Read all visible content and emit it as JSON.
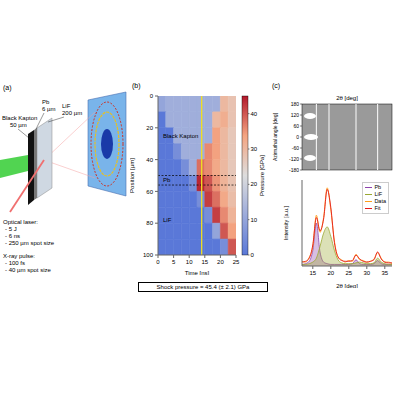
{
  "figure": {
    "panel_a": {
      "label": "(a)",
      "layers": [
        {
          "name": "Pb",
          "thickness": "6 µm"
        },
        {
          "name": "LiF",
          "thickness": "200 µm"
        },
        {
          "name": "Black Kapton",
          "thickness": "50 µm"
        }
      ],
      "optical_laser": {
        "title": "Optical laser:",
        "specs": [
          "- 5 J",
          "- 6 ns",
          "- 250 µm spot size"
        ]
      },
      "xray_pulse": {
        "title": "X-ray pulse:",
        "specs": [
          "- 100 fs",
          "- 40 µm spot size"
        ]
      }
    },
    "shock_pressure": "Shock pressure = 45.4 (± 2.1) GPa"
  },
  "chart_data": [
    {
      "type": "heatmap",
      "panel_label": "(b)",
      "xlabel": "Time [ns]",
      "ylabel": "Position [µm]",
      "xlim": [
        0,
        25
      ],
      "xticks": [
        0,
        5,
        10,
        15,
        20,
        25
      ],
      "ylim": [
        0,
        100
      ],
      "yticks": [
        0,
        20,
        40,
        60,
        80,
        100
      ],
      "x_edges": [
        0,
        2.5,
        5,
        7.5,
        10,
        12.5,
        15,
        17.5,
        20,
        22.5,
        25
      ],
      "y_edges": [
        0,
        10,
        20,
        30,
        40,
        50,
        60,
        70,
        80,
        90,
        100
      ],
      "cells": [
        [
          10,
          12,
          12,
          12,
          12,
          12,
          12,
          12,
          30,
          28
        ],
        [
          0,
          12,
          12,
          12,
          12,
          12,
          12,
          30,
          32,
          28
        ],
        [
          0,
          0,
          12,
          12,
          12,
          12,
          12,
          34,
          30,
          27
        ],
        [
          0,
          0,
          5,
          12,
          12,
          12,
          36,
          34,
          30,
          27
        ],
        [
          0,
          0,
          0,
          5,
          12,
          38,
          36,
          33,
          30,
          27
        ],
        [
          0,
          0,
          0,
          0,
          5,
          44,
          40,
          35,
          31,
          28
        ],
        [
          0,
          0,
          0,
          0,
          0,
          5,
          42,
          38,
          33,
          29
        ],
        [
          0,
          0,
          0,
          0,
          0,
          0,
          5,
          42,
          36,
          31
        ],
        [
          0,
          0,
          0,
          0,
          0,
          0,
          0,
          10,
          40,
          34
        ],
        [
          0,
          0,
          0,
          0,
          0,
          0,
          0,
          0,
          5,
          40
        ]
      ],
      "colorbar": {
        "label": "Pressure [GPa]",
        "range": [
          0,
          45
        ],
        "ticks": [
          0,
          10,
          20,
          30,
          40
        ]
      },
      "layers": [
        {
          "name": "Black Kapton",
          "from": 0,
          "to": 50
        },
        {
          "name": "Pb",
          "from": 50,
          "to": 56
        },
        {
          "name": "LiF",
          "from": 56,
          "to": 100
        }
      ],
      "probe_time": 14
    },
    {
      "type": "image",
      "panel_label": "(c)",
      "xlabel": "2θ [deg]",
      "ylabel": "Azimuthal angle [deg]",
      "xlim": [
        12,
        37
      ],
      "ylim": [
        -180,
        180
      ],
      "yticks": [
        -180,
        -120,
        -60,
        0,
        60,
        120,
        180
      ],
      "tick_labels": "y",
      "ring_positions": [
        16,
        19.5,
        27,
        33
      ]
    },
    {
      "type": "line",
      "xlabel": "2θ [deg]",
      "ylabel": "Intensity [a.u.]",
      "xlim": [
        12,
        37
      ],
      "xticks": [
        15,
        20,
        25,
        30,
        35
      ],
      "ylim": [
        0,
        1.1
      ],
      "tick_labels": "x",
      "legend": "upper right",
      "x": [
        12,
        13,
        14,
        15,
        16,
        17,
        18,
        19,
        20,
        21,
        22,
        23,
        24,
        25,
        26,
        27,
        28,
        29,
        30,
        31,
        32,
        33,
        34,
        35,
        36,
        37
      ],
      "series": [
        {
          "name": "Pb",
          "color": "#8e44ad",
          "type": "area",
          "values": [
            0.02,
            0.03,
            0.06,
            0.2,
            0.55,
            0.18,
            0.05,
            0.03,
            0.02,
            0.02,
            0.02,
            0.02,
            0.02,
            0.02,
            0.03,
            0.08,
            0.03,
            0.02,
            0.02,
            0.02,
            0.03,
            0.07,
            0.03,
            0.02,
            0.02,
            0.02
          ]
        },
        {
          "name": "LiF",
          "color": "#9aa832",
          "type": "area",
          "values": [
            0.02,
            0.02,
            0.03,
            0.05,
            0.1,
            0.25,
            0.42,
            0.5,
            0.38,
            0.2,
            0.08,
            0.04,
            0.03,
            0.03,
            0.03,
            0.04,
            0.05,
            0.04,
            0.03,
            0.03,
            0.04,
            0.1,
            0.05,
            0.03,
            0.02,
            0.02
          ]
        },
        {
          "name": "Data",
          "color": "#ff9f1c",
          "type": "line",
          "values": [
            0.06,
            0.05,
            0.11,
            0.25,
            0.65,
            0.43,
            0.62,
            1.0,
            0.72,
            0.32,
            0.11,
            0.08,
            0.05,
            0.07,
            0.06,
            0.15,
            0.08,
            0.07,
            0.05,
            0.06,
            0.09,
            0.17,
            0.1,
            0.05,
            0.05,
            0.03
          ]
        },
        {
          "name": "Fit",
          "color": "#e41a1c",
          "type": "line",
          "values": [
            0.05,
            0.06,
            0.1,
            0.27,
            0.62,
            0.45,
            0.6,
            0.98,
            0.75,
            0.3,
            0.12,
            0.07,
            0.06,
            0.06,
            0.07,
            0.14,
            0.09,
            0.06,
            0.05,
            0.06,
            0.08,
            0.18,
            0.09,
            0.05,
            0.04,
            0.04
          ]
        }
      ]
    }
  ]
}
